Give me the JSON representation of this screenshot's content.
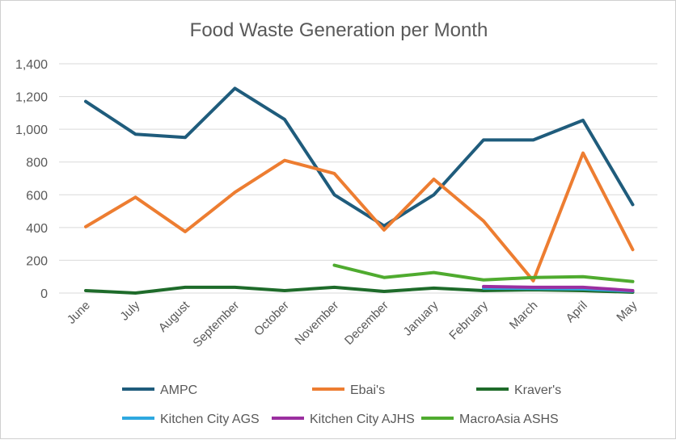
{
  "chart_data": {
    "type": "line",
    "title": "Food Waste Generation per Month",
    "xlabel": "",
    "ylabel": "",
    "ylim": [
      0,
      1400
    ],
    "yticks": [
      "0",
      "200",
      "400",
      "600",
      "800",
      "1,000",
      "1,200",
      "1,400"
    ],
    "grid": true,
    "legend_position": "bottom",
    "categories": [
      "June",
      "July",
      "August",
      "September",
      "October",
      "November",
      "December",
      "January",
      "February",
      "March",
      "April",
      "May"
    ],
    "series": [
      {
        "name": "AMPC",
        "color": "#1f5c7c",
        "values": [
          1170,
          970,
          950,
          1250,
          1060,
          600,
          410,
          600,
          935,
          935,
          1055,
          540
        ]
      },
      {
        "name": "Ebai's",
        "color": "#ed7d31",
        "values": [
          405,
          585,
          375,
          615,
          810,
          730,
          385,
          695,
          440,
          75,
          855,
          265
        ]
      },
      {
        "name": "Kraver's",
        "color": "#1e6b2a",
        "values": [
          15,
          0,
          35,
          35,
          15,
          35,
          10,
          30,
          15,
          20,
          15,
          5
        ]
      },
      {
        "name": "Kitchen City AGS",
        "color": "#2ea8e0",
        "values": [
          null,
          null,
          null,
          null,
          null,
          null,
          null,
          null,
          30,
          28,
          25,
          12
        ]
      },
      {
        "name": "Kitchen City AJHS",
        "color": "#9b2fa0",
        "values": [
          null,
          null,
          null,
          null,
          null,
          null,
          null,
          null,
          40,
          35,
          35,
          15
        ]
      },
      {
        "name": "MacroAsia ASHS",
        "color": "#4fab2f",
        "values": [
          null,
          null,
          null,
          null,
          null,
          170,
          95,
          125,
          80,
          95,
          100,
          70
        ]
      }
    ]
  }
}
